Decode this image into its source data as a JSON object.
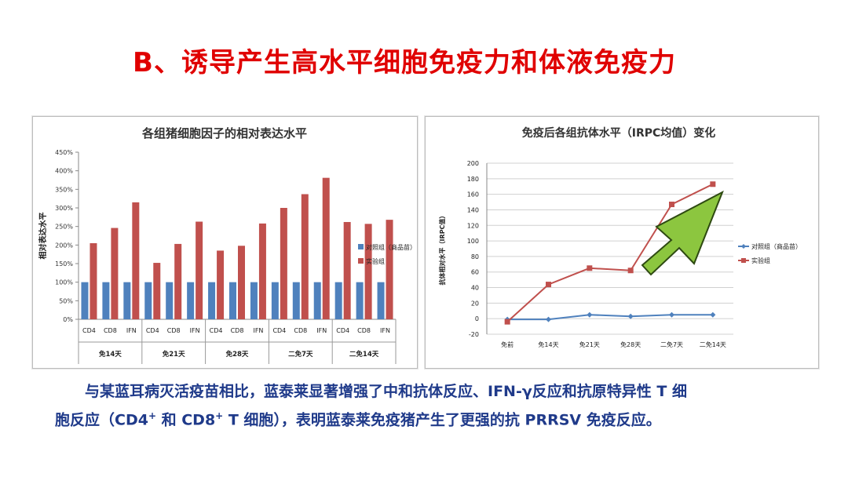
{
  "slide_title": "B、诱导产生高水平细胞免疫力和体液免疫力",
  "caption": {
    "line1": "与某蓝耳病灭活疫苗相比，蓝泰莱显著增强了中和抗体反应、IFN-γ反应和抗原特异性 T 细",
    "line2_a": "胞反应（CD4",
    "sup1": "+",
    "line2_b": " 和 CD8",
    "sup2": "+",
    "line2_c": " T 细胞），表明蓝泰莱免疫猪产生了更强的抗 PRRSV 免疫反应。"
  },
  "colors": {
    "title": "#e00000",
    "caption": "#1f3a8a",
    "control_bar": "#4f81bd",
    "experiment_bar": "#c0504d",
    "control_line": "#4f81bd",
    "experiment_line": "#c0504d",
    "arrow_fill": "#8cc63f",
    "arrow_stroke": "#2e4a12"
  },
  "chart_data": [
    {
      "type": "bar",
      "title": "各组猪细胞因子的相对表达水平",
      "ylabel": "相对表达水平",
      "ylim": [
        0,
        450
      ],
      "y_ticks": [
        "0%",
        "50%",
        "100%",
        "150%",
        "200%",
        "250%",
        "300%",
        "350%",
        "400%",
        "450%"
      ],
      "categories": [
        "CD4",
        "CD8",
        "IFN",
        "CD4",
        "CD8",
        "IFN",
        "CD4",
        "CD8",
        "IFN",
        "CD4",
        "CD8",
        "IFN",
        "CD4",
        "CD8",
        "IFN"
      ],
      "groups": [
        "免14天",
        "免21天",
        "免28天",
        "二免7天",
        "二免14天"
      ],
      "series": [
        {
          "name": "对照组（商品苗）",
          "values": [
            100,
            100,
            100,
            100,
            100,
            100,
            100,
            100,
            100,
            100,
            100,
            100,
            100,
            100,
            100
          ]
        },
        {
          "name": "实验组",
          "values": [
            205,
            246,
            315,
            152,
            203,
            263,
            185,
            198,
            258,
            300,
            337,
            381,
            262,
            257,
            268
          ]
        }
      ],
      "legend": "right"
    },
    {
      "type": "line",
      "title": "免疫后各组抗体水平（IRPC均值）变化",
      "ylabel": "抗体相对水平（IRPC值）",
      "ylim": [
        -20,
        200
      ],
      "y_ticks": [
        "-20",
        "0",
        "20",
        "40",
        "60",
        "80",
        "100",
        "120",
        "140",
        "160",
        "180",
        "200"
      ],
      "categories": [
        "免前",
        "免14天",
        "免21天",
        "免28天",
        "二免7天",
        "二免14天"
      ],
      "series": [
        {
          "name": "对照组（商品苗）",
          "values": [
            -1,
            -1,
            5,
            3,
            5,
            5
          ]
        },
        {
          "name": "实验组",
          "values": [
            -4,
            44,
            65,
            62,
            147,
            173
          ]
        }
      ],
      "legend": "right"
    }
  ]
}
